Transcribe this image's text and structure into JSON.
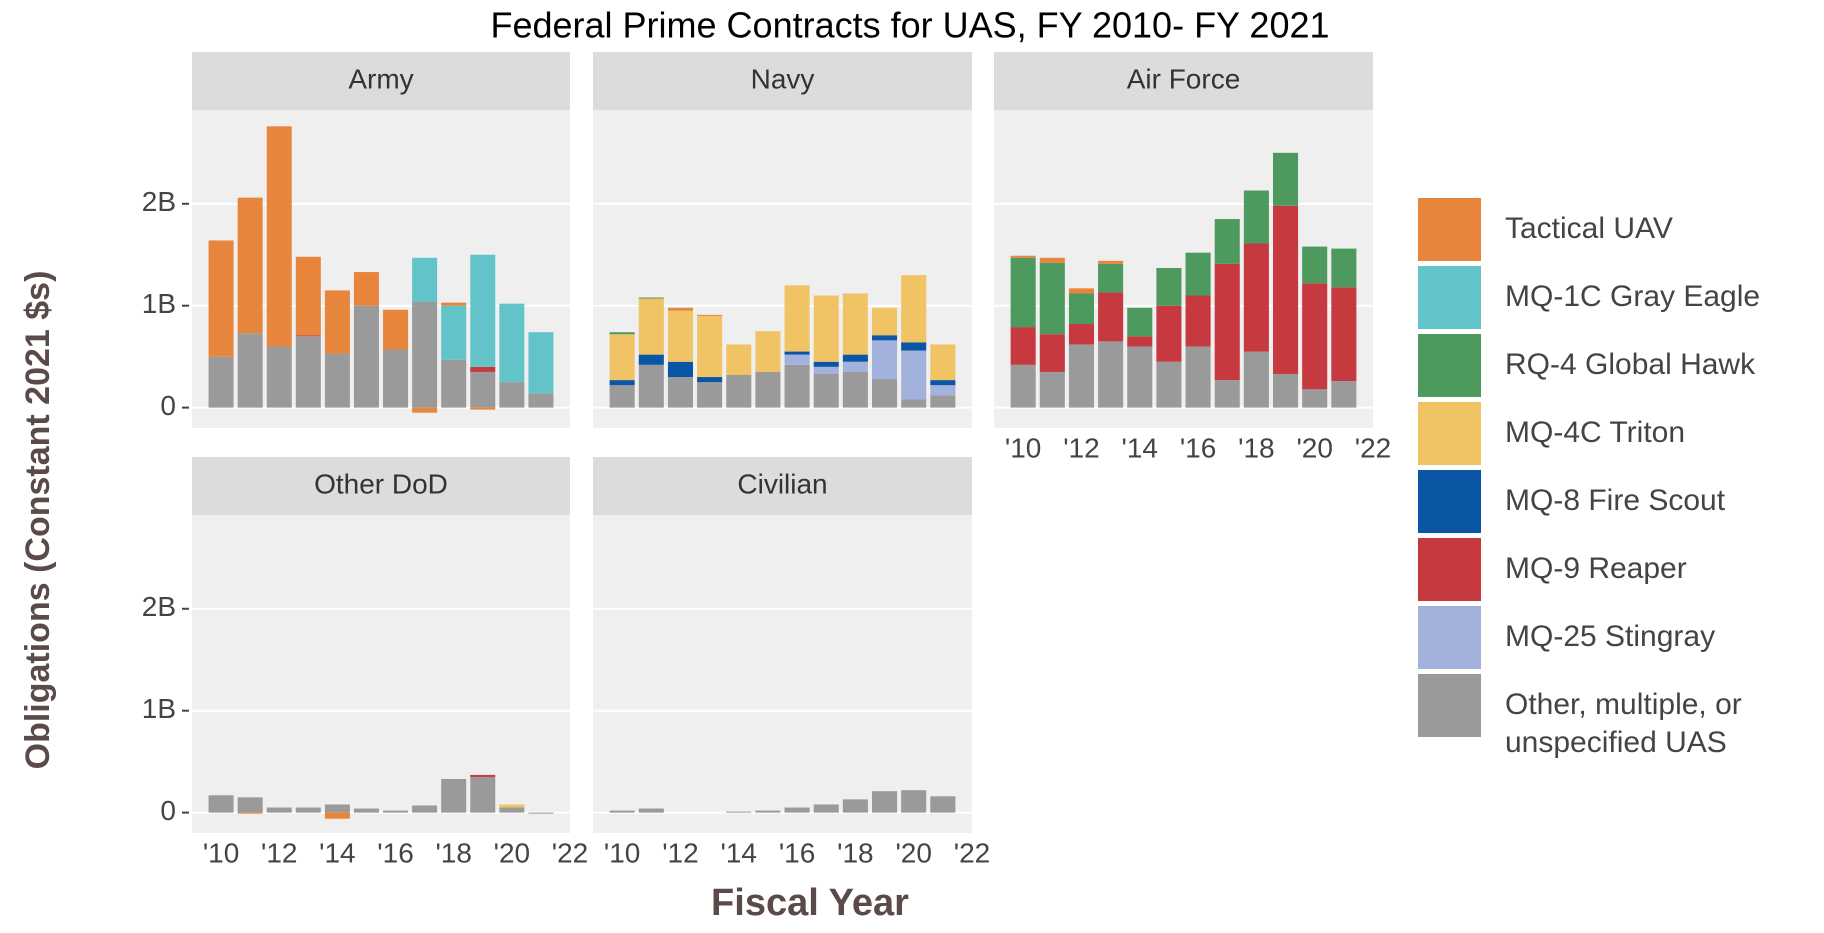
{
  "title": "Federal Prime Contracts for UAS, FY 2010- FY 2021",
  "y_label": "Obligations (Constant 2021 $s)",
  "x_label": "Fiscal Year",
  "chart_data": [
    {
      "type": "bar",
      "stacked": true,
      "title": "Army",
      "x": [
        2010,
        2011,
        2012,
        2013,
        2014,
        2015,
        2016,
        2017,
        2018,
        2019,
        2020,
        2021
      ],
      "xlim": [
        2009,
        2022
      ],
      "ylim": [
        -0.2,
        2.92
      ],
      "yticks": [
        0,
        {
          "value": 1,
          "label": "1B"
        },
        {
          "value": 2,
          "label": "2B"
        }
      ],
      "series": [
        {
          "name": "Tactical UAV",
          "color": "#E8853D",
          "values": [
            1.14,
            1.33,
            2.16,
            0.77,
            0.62,
            0.33,
            0.39,
            -0.05,
            0.03,
            -0.02,
            0,
            0
          ]
        },
        {
          "name": "MQ-1C Gray Eagle",
          "color": "#62C3C8",
          "values": [
            0,
            0,
            0,
            0,
            0,
            0,
            0,
            0.43,
            0.53,
            1.1,
            0.77,
            0.6
          ]
        },
        {
          "name": "RQ-4 Global Hawk",
          "color": "#4E9A5E",
          "values": [
            0,
            0,
            0,
            0,
            0,
            0,
            0,
            0,
            0,
            0,
            0,
            0
          ]
        },
        {
          "name": "MQ-4C Triton",
          "color": "#F0C465",
          "values": [
            0,
            0,
            0,
            0,
            0,
            0,
            0,
            0,
            0,
            0,
            0,
            0
          ]
        },
        {
          "name": "MQ-8 Fire Scout",
          "color": "#0B55A5",
          "values": [
            0,
            0,
            0,
            0,
            0,
            0,
            0,
            0,
            0,
            0,
            0,
            0
          ]
        },
        {
          "name": "MQ-9 Reaper",
          "color": "#C5393F",
          "values": [
            0,
            0,
            0,
            0.01,
            0,
            0,
            0,
            0,
            0,
            0.05,
            0,
            0
          ]
        },
        {
          "name": "MQ-25 Stingray",
          "color": "#A2B2DD",
          "values": [
            0,
            0,
            0,
            0,
            0,
            0,
            0,
            0,
            0,
            0,
            0,
            0
          ]
        },
        {
          "name": "Other, multiple, or unspecified UAS",
          "color": "#9A9A9A",
          "values": [
            0.5,
            0.73,
            0.6,
            0.7,
            0.53,
            1.0,
            0.57,
            1.04,
            0.47,
            0.35,
            0.25,
            0.14
          ]
        }
      ]
    },
    {
      "type": "bar",
      "stacked": true,
      "title": "Navy",
      "x": [
        2010,
        2011,
        2012,
        2013,
        2014,
        2015,
        2016,
        2017,
        2018,
        2019,
        2020,
        2021
      ],
      "xlim": [
        2009,
        2022
      ],
      "ylim": [
        -0.2,
        2.92
      ],
      "yticks": [
        0,
        1,
        2
      ],
      "series": [
        {
          "name": "Tactical UAV",
          "color": "#E8853D",
          "values": [
            0,
            0,
            0.03,
            0.01,
            0,
            0,
            0,
            0,
            0,
            0,
            0,
            0
          ]
        },
        {
          "name": "MQ-1C Gray Eagle",
          "color": "#62C3C8",
          "values": [
            0,
            0,
            0,
            0,
            0,
            0,
            0,
            0,
            0,
            0,
            0,
            0
          ]
        },
        {
          "name": "RQ-4 Global Hawk",
          "color": "#4E9A5E",
          "values": [
            0.02,
            0.01,
            0,
            0,
            0,
            0,
            0,
            0,
            0,
            0,
            0,
            0
          ]
        },
        {
          "name": "MQ-4C Triton",
          "color": "#F0C465",
          "values": [
            0.45,
            0.55,
            0.5,
            0.6,
            0.3,
            0.4,
            0.65,
            0.65,
            0.6,
            0.27,
            0.66,
            0.35
          ]
        },
        {
          "name": "MQ-8 Fire Scout",
          "color": "#0B55A5",
          "values": [
            0.05,
            0.1,
            0.15,
            0.05,
            0,
            0,
            0.03,
            0.05,
            0.07,
            0.05,
            0.08,
            0.05
          ]
        },
        {
          "name": "MQ-9 Reaper",
          "color": "#C5393F",
          "values": [
            0,
            0,
            0,
            0,
            0,
            0,
            0,
            0,
            0,
            0,
            0,
            0
          ]
        },
        {
          "name": "MQ-25 Stingray",
          "color": "#A2B2DD",
          "values": [
            0,
            0,
            0,
            0,
            0,
            0,
            0.1,
            0.07,
            0.1,
            0.38,
            0.48,
            0.1
          ]
        },
        {
          "name": "Other, multiple, or unspecified UAS",
          "color": "#9A9A9A",
          "values": [
            0.22,
            0.42,
            0.3,
            0.25,
            0.32,
            0.35,
            0.42,
            0.33,
            0.35,
            0.28,
            0.08,
            0.12
          ]
        }
      ]
    },
    {
      "type": "bar",
      "stacked": true,
      "title": "Air Force",
      "x": [
        2010,
        2011,
        2012,
        2013,
        2014,
        2015,
        2016,
        2017,
        2018,
        2019,
        2020,
        2021
      ],
      "xlim": [
        2009,
        2022
      ],
      "ylim": [
        -0.2,
        2.92
      ],
      "yticks": [
        0,
        1,
        2
      ],
      "xticks": [
        {
          "value": 2010,
          "label": "'10"
        },
        {
          "value": 2012,
          "label": "'12"
        },
        {
          "value": 2014,
          "label": "'14"
        },
        {
          "value": 2016,
          "label": "'16"
        },
        {
          "value": 2018,
          "label": "'18"
        },
        {
          "value": 2020,
          "label": "'20"
        },
        {
          "value": 2022,
          "label": "'22"
        }
      ],
      "series": [
        {
          "name": "Tactical UAV",
          "color": "#E8853D",
          "values": [
            0.02,
            0.05,
            0.05,
            0.03,
            0,
            0,
            0,
            0,
            0,
            0,
            0,
            0
          ]
        },
        {
          "name": "MQ-1C Gray Eagle",
          "color": "#62C3C8",
          "values": [
            0,
            0,
            0,
            0,
            0,
            0,
            0,
            0,
            0,
            0,
            0,
            0
          ]
        },
        {
          "name": "RQ-4 Global Hawk",
          "color": "#4E9A5E",
          "values": [
            0.68,
            0.7,
            0.3,
            0.28,
            0.28,
            0.37,
            0.42,
            0.44,
            0.52,
            0.52,
            0.36,
            0.38
          ]
        },
        {
          "name": "MQ-4C Triton",
          "color": "#F0C465",
          "values": [
            0,
            0,
            0,
            0,
            0,
            0,
            0,
            0,
            0,
            0,
            0,
            0
          ]
        },
        {
          "name": "MQ-8 Fire Scout",
          "color": "#0B55A5",
          "values": [
            0,
            0,
            0,
            0,
            0,
            0,
            0,
            0,
            0,
            0,
            0,
            0
          ]
        },
        {
          "name": "MQ-9 Reaper",
          "color": "#C5393F",
          "values": [
            0.37,
            0.37,
            0.2,
            0.48,
            0.1,
            0.55,
            0.5,
            1.14,
            1.06,
            1.65,
            1.04,
            0.92
          ]
        },
        {
          "name": "MQ-25 Stingray",
          "color": "#A2B2DD",
          "values": [
            0,
            0,
            0,
            0,
            0,
            0,
            0,
            0,
            0,
            0,
            0,
            0
          ]
        },
        {
          "name": "Other, multiple, or unspecified UAS",
          "color": "#9A9A9A",
          "values": [
            0.42,
            0.35,
            0.62,
            0.65,
            0.6,
            0.45,
            0.6,
            0.27,
            0.55,
            0.33,
            0.18,
            0.26
          ]
        }
      ]
    },
    {
      "type": "bar",
      "stacked": true,
      "title": "Other DoD",
      "x": [
        2010,
        2011,
        2012,
        2013,
        2014,
        2015,
        2016,
        2017,
        2018,
        2019,
        2020,
        2021
      ],
      "xlim": [
        2009,
        2022
      ],
      "ylim": [
        -0.2,
        2.92
      ],
      "yticks": [
        0,
        {
          "value": 1,
          "label": "1B"
        },
        {
          "value": 2,
          "label": "2B"
        }
      ],
      "xticks": [
        {
          "value": 2010,
          "label": "'10"
        },
        {
          "value": 2012,
          "label": "'12"
        },
        {
          "value": 2014,
          "label": "'14"
        },
        {
          "value": 2016,
          "label": "'16"
        },
        {
          "value": 2018,
          "label": "'18"
        },
        {
          "value": 2020,
          "label": "'20"
        },
        {
          "value": 2022,
          "label": "'22"
        }
      ],
      "series": [
        {
          "name": "Tactical UAV",
          "color": "#E8853D",
          "values": [
            0,
            -0.01,
            0,
            0,
            -0.06,
            0,
            0,
            0,
            0,
            0,
            0,
            0
          ]
        },
        {
          "name": "MQ-1C Gray Eagle",
          "color": "#62C3C8",
          "values": [
            0,
            0,
            0,
            0,
            0,
            0,
            0,
            0,
            0,
            0,
            0,
            0
          ]
        },
        {
          "name": "RQ-4 Global Hawk",
          "color": "#4E9A5E",
          "values": [
            0,
            0,
            0,
            0,
            0,
            0,
            0,
            0,
            0,
            0,
            0,
            0
          ]
        },
        {
          "name": "MQ-4C Triton",
          "color": "#F0C465",
          "values": [
            0,
            0,
            0,
            0,
            0,
            0,
            0,
            0,
            0,
            0,
            0.03,
            0
          ]
        },
        {
          "name": "MQ-8 Fire Scout",
          "color": "#0B55A5",
          "values": [
            0,
            0,
            0,
            0,
            0,
            0,
            0,
            0,
            0,
            0,
            0,
            0
          ]
        },
        {
          "name": "MQ-9 Reaper",
          "color": "#C5393F",
          "values": [
            0,
            0,
            0,
            0,
            0,
            0,
            0,
            0,
            0,
            0.02,
            0,
            0
          ]
        },
        {
          "name": "MQ-25 Stingray",
          "color": "#A2B2DD",
          "values": [
            0,
            0,
            0,
            0,
            0,
            0,
            0,
            0,
            0,
            0,
            0,
            0
          ]
        },
        {
          "name": "Other, multiple, or unspecified UAS",
          "color": "#9A9A9A",
          "values": [
            0.17,
            0.15,
            0.05,
            0.05,
            0.08,
            0.04,
            0.02,
            0.07,
            0.33,
            0.35,
            0.05,
            -0.01
          ]
        }
      ]
    },
    {
      "type": "bar",
      "stacked": true,
      "title": "Civilian",
      "x": [
        2010,
        2011,
        2012,
        2013,
        2014,
        2015,
        2016,
        2017,
        2018,
        2019,
        2020,
        2021
      ],
      "xlim": [
        2009,
        2022
      ],
      "ylim": [
        -0.2,
        2.92
      ],
      "yticks": [
        0,
        1,
        2
      ],
      "xticks": [
        {
          "value": 2010,
          "label": "'10"
        },
        {
          "value": 2012,
          "label": "'12"
        },
        {
          "value": 2014,
          "label": "'14"
        },
        {
          "value": 2016,
          "label": "'16"
        },
        {
          "value": 2018,
          "label": "'18"
        },
        {
          "value": 2020,
          "label": "'20"
        },
        {
          "value": 2022,
          "label": "'22"
        }
      ],
      "series": [
        {
          "name": "Tactical UAV",
          "color": "#E8853D",
          "values": [
            0,
            0,
            0,
            0,
            0,
            0,
            0,
            0,
            0,
            0,
            0,
            0
          ]
        },
        {
          "name": "MQ-1C Gray Eagle",
          "color": "#62C3C8",
          "values": [
            0,
            0,
            0,
            0,
            0,
            0,
            0,
            0,
            0,
            0,
            0,
            0
          ]
        },
        {
          "name": "RQ-4 Global Hawk",
          "color": "#4E9A5E",
          "values": [
            0,
            0,
            0,
            0,
            0,
            0,
            0,
            0,
            0,
            0,
            0,
            0
          ]
        },
        {
          "name": "MQ-4C Triton",
          "color": "#F0C465",
          "values": [
            0,
            0,
            0,
            0,
            0,
            0,
            0,
            0,
            0,
            0,
            0,
            0
          ]
        },
        {
          "name": "MQ-8 Fire Scout",
          "color": "#0B55A5",
          "values": [
            0,
            0,
            0,
            0,
            0,
            0,
            0,
            0,
            0,
            0,
            0,
            0
          ]
        },
        {
          "name": "MQ-9 Reaper",
          "color": "#C5393F",
          "values": [
            0,
            0,
            0,
            0,
            0,
            0,
            0,
            0,
            0,
            0,
            0,
            0
          ]
        },
        {
          "name": "MQ-25 Stingray",
          "color": "#A2B2DD",
          "values": [
            0,
            0,
            0,
            0,
            0,
            0,
            0,
            0,
            0,
            0,
            0,
            0
          ]
        },
        {
          "name": "Other, multiple, or unspecified UAS",
          "color": "#9A9A9A",
          "values": [
            0.02,
            0.04,
            0,
            0,
            0.01,
            0.02,
            0.05,
            0.08,
            0.13,
            0.21,
            0.22,
            0.16
          ]
        }
      ]
    }
  ]
}
